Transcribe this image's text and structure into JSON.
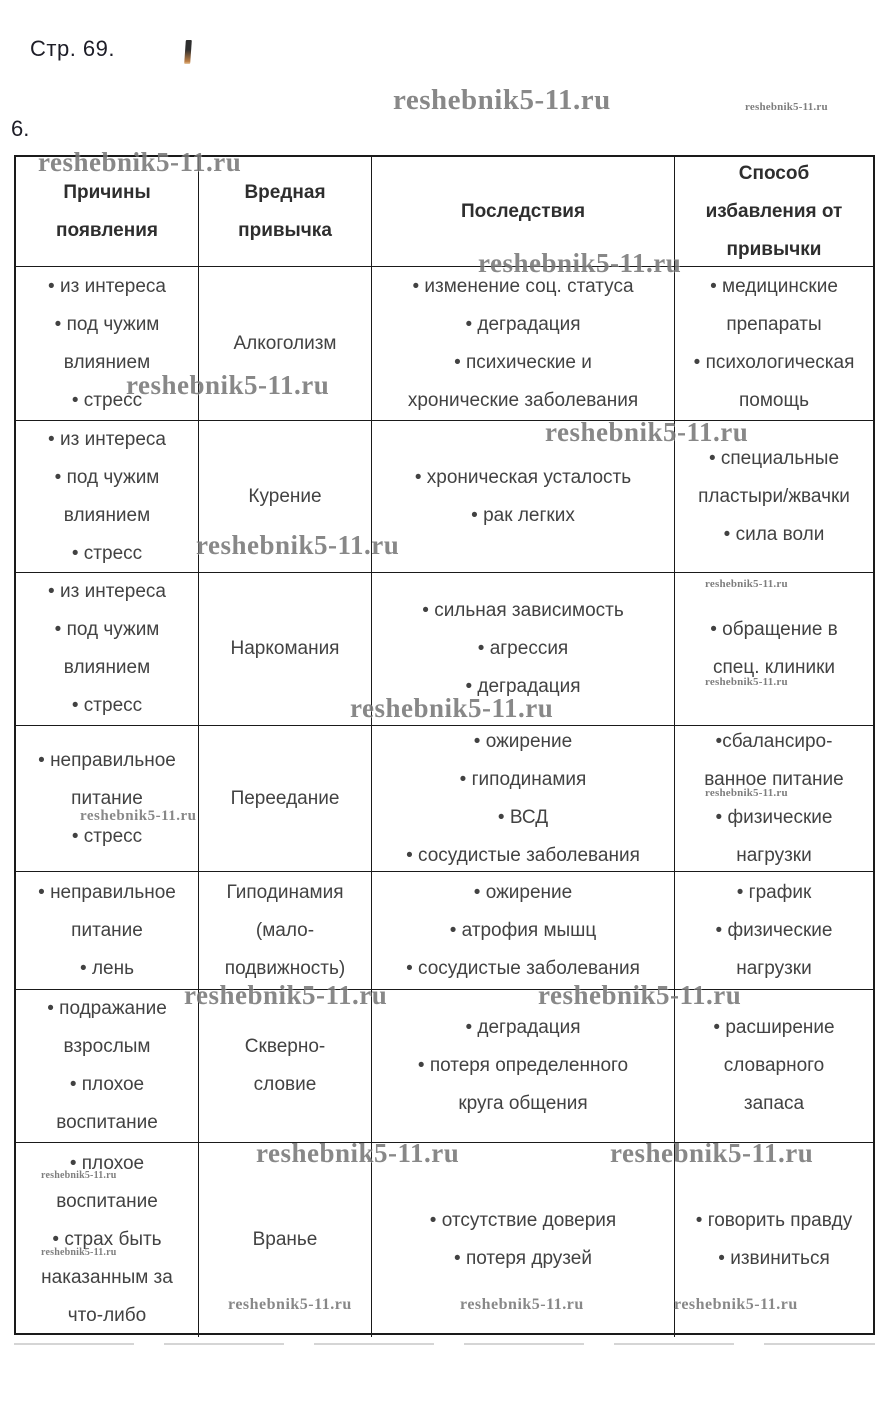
{
  "page": {
    "header_note": "Стр. 69.",
    "task_number": "6."
  },
  "watermark": {
    "text": "reshebnik5-11.ru"
  },
  "table": {
    "headers": [
      "Причины\nпоявления",
      "Вредная\nпривычка",
      "Последствия",
      "Способ\nизбавления от\nпривычки"
    ],
    "rows": [
      {
        "causes": [
          "из интереса",
          "под чужим\nвлиянием",
          "стресс"
        ],
        "habit": "Алкоголизм",
        "consequences": [
          "изменение соц. статуса",
          "деградация",
          "психические и\nхронические заболевания"
        ],
        "remedies": [
          "медицинские\nпрепараты",
          "психологическая\nпомощь"
        ]
      },
      {
        "causes": [
          "из интереса",
          "под чужим\nвлиянием",
          "стресс"
        ],
        "habit": "Курение",
        "consequences": [
          "хроническая усталость",
          "рак легких"
        ],
        "remedies": [
          "специальные\nпластыри/жвачки",
          "сила воли"
        ]
      },
      {
        "causes": [
          "из интереса",
          "под чужим\nвлиянием",
          "стресс"
        ],
        "habit": "Наркомания",
        "consequences": [
          "сильная зависимость",
          "агрессия",
          "деградация"
        ],
        "remedies": [
          "обращение в\nспец. клиники"
        ]
      },
      {
        "causes": [
          "неправильное\nпитание",
          "стресс"
        ],
        "habit": "Переедание",
        "consequences": [
          "ожирение",
          "гиподинамия",
          "ВСД",
          "сосудистые заболевания"
        ],
        "remedies": [
          "сбалансиро-\nванное питание",
          "физические\nнагрузки"
        ]
      },
      {
        "causes": [
          "неправильное\nпитание",
          "лень"
        ],
        "habit": "Гиподинамия\n(мало-\nподвижность)",
        "consequences": [
          "ожирение",
          "атрофия мышц",
          "сосудистые заболевания"
        ],
        "remedies": [
          "график",
          "физические\nнагрузки"
        ]
      },
      {
        "causes": [
          "подражание\nвзрослым",
          "плохое\nвоспитание"
        ],
        "habit": "Скверно-\nсловие",
        "consequences": [
          "деградация",
          "потеря определенного\nкруга общения"
        ],
        "remedies": [
          "расширение\nсловарного\nзапаса"
        ]
      },
      {
        "causes": [
          "плохое\nвоспитание",
          "страх быть\nнаказанным за\nчто-либо"
        ],
        "habit": "Вранье",
        "consequences": [
          "отсутствие доверия",
          "потеря друзей"
        ],
        "remedies": [
          "говорить правду",
          "извиниться"
        ]
      }
    ]
  }
}
